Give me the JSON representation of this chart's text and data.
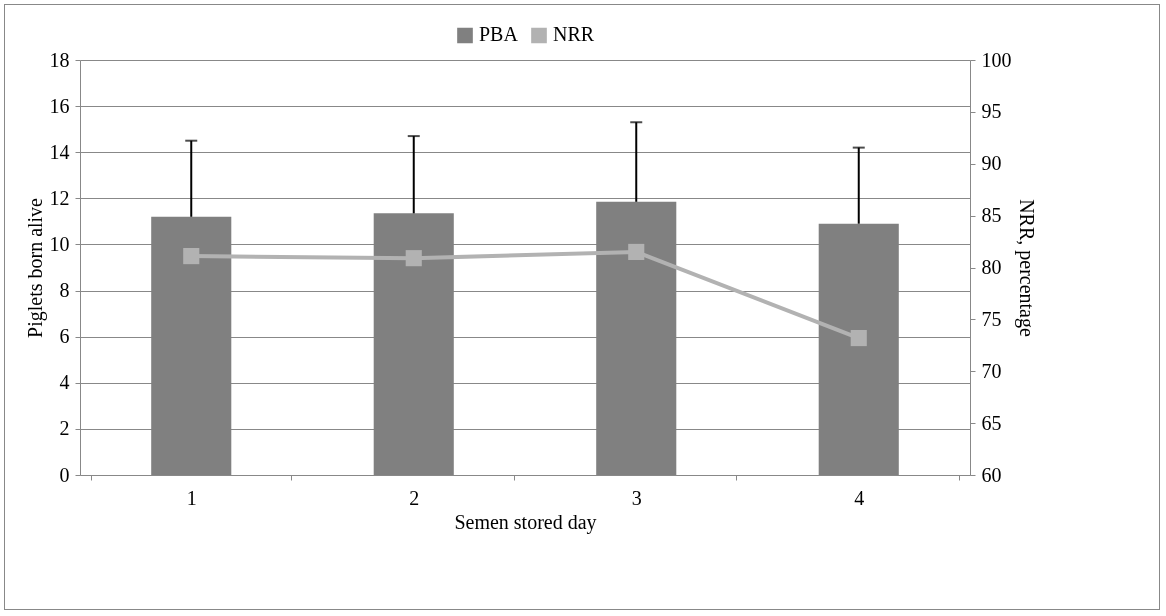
{
  "chart_data": {
    "type": "bar",
    "xlabel": "Semen stored day",
    "ylabel": "Piglets born alive",
    "y2label": "NRR, percentage",
    "categories": [
      "1",
      "2",
      "3",
      "4"
    ],
    "series": [
      {
        "name": "PBA",
        "color": "#808080",
        "values": [
          11.2,
          11.35,
          11.85,
          10.9
        ],
        "errors": [
          [
            11.2,
            14.5
          ],
          [
            11.35,
            14.7
          ],
          [
            11.85,
            15.3
          ],
          [
            10.9,
            14.2
          ]
        ]
      },
      {
        "name": "NRR",
        "type": "line",
        "axis": "y2",
        "color": "#b2b2b2",
        "values": [
          81.1,
          80.9,
          81.5,
          73.2
        ]
      }
    ],
    "ylim": [
      0,
      18
    ],
    "yticks": [
      0,
      2,
      4,
      6,
      8,
      10,
      12,
      14,
      16,
      18
    ],
    "y2lim": [
      60,
      100
    ],
    "y2ticks": [
      60,
      65,
      70,
      75,
      80,
      85,
      90,
      95,
      100
    ],
    "grid": "y",
    "legend": "top",
    "marker": "square",
    "line_style": "solid"
  }
}
